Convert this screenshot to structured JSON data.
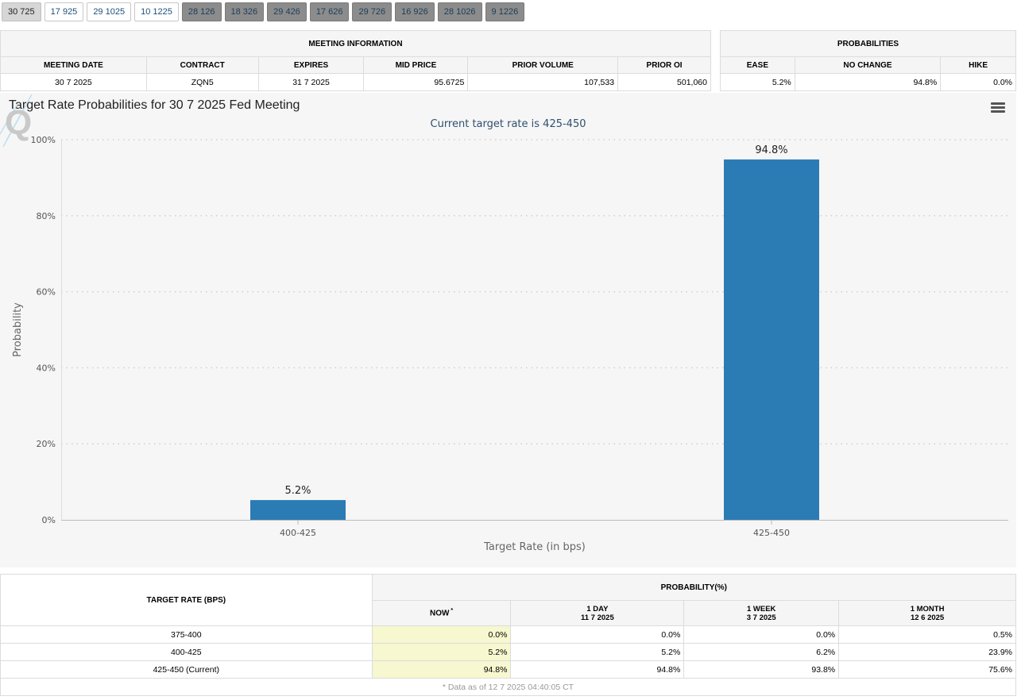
{
  "tabs": [
    {
      "label": "30 725",
      "style": "active"
    },
    {
      "label": "17 925",
      "style": "light"
    },
    {
      "label": "29 1025",
      "style": "light"
    },
    {
      "label": "10 1225",
      "style": "light"
    },
    {
      "label": "28 126",
      "style": "dark"
    },
    {
      "label": "18 326",
      "style": "dark"
    },
    {
      "label": "29 426",
      "style": "dark"
    },
    {
      "label": "17 626",
      "style": "dark"
    },
    {
      "label": "29 726",
      "style": "dark"
    },
    {
      "label": "16 926",
      "style": "dark"
    },
    {
      "label": "28 1026",
      "style": "dark"
    },
    {
      "label": "9 1226",
      "style": "dark"
    }
  ],
  "meeting_info": {
    "title": "MEETING INFORMATION",
    "headers": [
      "MEETING DATE",
      "CONTRACT",
      "EXPIRES",
      "MID PRICE",
      "PRIOR VOLUME",
      "PRIOR OI"
    ],
    "row": [
      "30 7 2025",
      "ZQN5",
      "31 7 2025",
      "95.6725",
      "107,533",
      "501,060"
    ]
  },
  "probabilities": {
    "title": "PROBABILITIES",
    "headers": [
      "EASE",
      "NO CHANGE",
      "HIKE"
    ],
    "row": [
      "5.2%",
      "94.8%",
      "0.0%"
    ]
  },
  "chart_data": {
    "type": "bar",
    "title": "Target Rate Probabilities for 30 7 2025 Fed Meeting",
    "subtitle": "Current target rate is 425-450",
    "xlabel": "Target Rate (in bps)",
    "ylabel": "Probability",
    "categories": [
      "400-425",
      "425-450"
    ],
    "values": [
      5.2,
      94.8
    ],
    "data_labels": [
      "5.2%",
      "94.8%"
    ],
    "ylim": [
      0,
      100
    ],
    "yticks": [
      "0%",
      "20%",
      "40%",
      "60%",
      "80%",
      "100%"
    ],
    "grid": true,
    "bar_color": "#2b7bb5"
  },
  "rate_table": {
    "target_header": "TARGET RATE (BPS)",
    "prob_header": "PROBABILITY(%)",
    "columns": [
      {
        "label": "NOW",
        "sub": "",
        "mark": "*"
      },
      {
        "label": "1 DAY",
        "sub": "11 7 2025"
      },
      {
        "label": "1 WEEK",
        "sub": "3 7 2025"
      },
      {
        "label": "1 MONTH",
        "sub": "12 6 2025"
      }
    ],
    "rows": [
      {
        "rate": "375-400",
        "values": [
          "0.0%",
          "0.0%",
          "0.0%",
          "0.5%"
        ]
      },
      {
        "rate": "400-425",
        "values": [
          "5.2%",
          "5.2%",
          "6.2%",
          "23.9%"
        ]
      },
      {
        "rate": "425-450 (Current)",
        "values": [
          "94.8%",
          "94.8%",
          "93.8%",
          "75.6%"
        ]
      }
    ],
    "footnote": "* Data as of 12 7 2025 04:40:05 CT"
  }
}
